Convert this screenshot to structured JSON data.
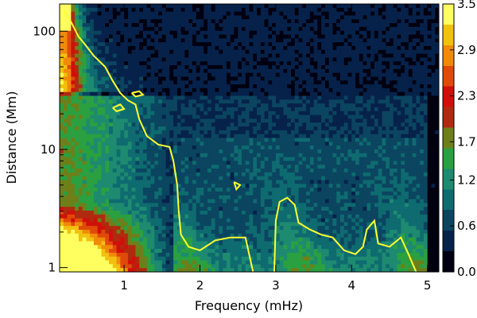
{
  "chart_data": {
    "type": "heatmap",
    "title": "",
    "xlabel": "Frequency (mHz)",
    "ylabel": "Distance (Mm)",
    "xlim": [
      0.15,
      5.15
    ],
    "ylim": [
      0.92,
      170
    ],
    "yscale": "log",
    "x_ticks": [
      {
        "value": 1,
        "label": "1"
      },
      {
        "value": 2,
        "label": "2"
      },
      {
        "value": 3,
        "label": "3"
      },
      {
        "value": 4,
        "label": "4"
      },
      {
        "value": 5,
        "label": "5"
      }
    ],
    "y_ticks": [
      {
        "value": 1,
        "label": "1"
      },
      {
        "value": 10,
        "label": "10"
      },
      {
        "value": 100,
        "label": "100"
      }
    ],
    "colorbar": {
      "min": 0.0,
      "max": 3.5,
      "ticks": [
        {
          "value": 3.5,
          "label": "3.5"
        },
        {
          "value": 2.9,
          "label": "2.9"
        },
        {
          "value": 2.3,
          "label": "2.3"
        },
        {
          "value": 1.7,
          "label": "1.7"
        },
        {
          "value": 1.2,
          "label": "1.2"
        },
        {
          "value": 0.6,
          "label": "0.6"
        },
        {
          "value": 0.0,
          "label": "0.0"
        }
      ]
    },
    "level_colors": [
      "#000010",
      "#06224a",
      "#0b4560",
      "#0e6b70",
      "#1e8a70",
      "#2aa040",
      "#6e7f1a",
      "#b02a10",
      "#d01008",
      "#e04a08",
      "#f08a08",
      "#f2c010",
      "#ffff60"
    ],
    "contour_color": "#ffff30",
    "contour_curve": [
      [
        0.2,
        150
      ],
      [
        0.3,
        120
      ],
      [
        0.4,
        90
      ],
      [
        0.5,
        75
      ],
      [
        0.6,
        62
      ],
      [
        0.75,
        50
      ],
      [
        0.85,
        38
      ],
      [
        0.95,
        30
      ],
      [
        1.05,
        26
      ],
      [
        1.15,
        24
      ],
      [
        1.2,
        18
      ],
      [
        1.3,
        13
      ],
      [
        1.45,
        11
      ],
      [
        1.6,
        10.5
      ],
      [
        1.65,
        8
      ],
      [
        1.7,
        5
      ],
      [
        1.72,
        3
      ],
      [
        1.75,
        1.9
      ],
      [
        1.85,
        1.5
      ],
      [
        2.0,
        1.4
      ],
      [
        2.2,
        1.7
      ],
      [
        2.4,
        1.8
      ],
      [
        2.6,
        1.8
      ],
      [
        2.7,
        0.92
      ]
    ],
    "contour_islands": [
      [
        [
          2.98,
          0.92
        ],
        [
          3.0,
          2.5
        ],
        [
          3.05,
          3.6
        ],
        [
          3.15,
          3.9
        ],
        [
          3.25,
          3.4
        ],
        [
          3.3,
          2.4
        ],
        [
          3.45,
          2.1
        ],
        [
          3.6,
          1.9
        ],
        [
          3.75,
          1.8
        ],
        [
          3.9,
          1.4
        ],
        [
          4.05,
          1.3
        ],
        [
          4.15,
          1.5
        ],
        [
          4.2,
          2.1
        ],
        [
          4.3,
          2.5
        ],
        [
          4.35,
          1.6
        ],
        [
          4.5,
          1.5
        ],
        [
          4.65,
          1.8
        ],
        [
          4.75,
          1.3
        ],
        [
          4.85,
          0.92
        ]
      ],
      [
        [
          2.45,
          5.3
        ],
        [
          2.48,
          4.6
        ],
        [
          2.53,
          5.0
        ],
        [
          2.45,
          5.3
        ]
      ],
      [
        [
          0.85,
          22.5
        ],
        [
          0.95,
          24
        ],
        [
          1.0,
          22
        ],
        [
          0.9,
          21
        ],
        [
          0.85,
          22.5
        ]
      ],
      [
        [
          1.1,
          30
        ],
        [
          1.2,
          31
        ],
        [
          1.25,
          29
        ],
        [
          1.15,
          28
        ],
        [
          1.1,
          30
        ]
      ]
    ]
  }
}
